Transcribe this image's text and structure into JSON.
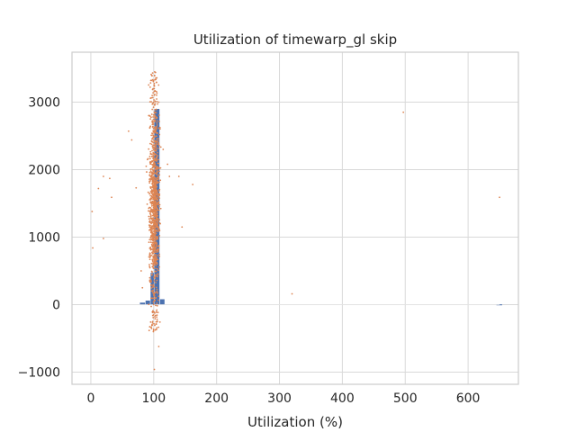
{
  "chart_data": {
    "type": "bar",
    "overlay_type": "scatter",
    "title": "Utilization of timewarp_gl skip",
    "xlabel": "Utilization (%)",
    "ylabel": "",
    "xlim": [
      -30,
      680
    ],
    "ylim": [
      -1180,
      3740
    ],
    "xticks": [
      0,
      100,
      200,
      300,
      400,
      500,
      600
    ],
    "yticks": [
      -1000,
      0,
      1000,
      2000,
      3000
    ],
    "grid": true,
    "legend": "none",
    "colors": {
      "bars": "#4c72b0",
      "points": "#dd8452",
      "grid": "#d9d9d9",
      "axes": "#cccccc"
    },
    "series": [
      {
        "kind": "histogram",
        "bins": [
          {
            "x0": 78,
            "x1": 87,
            "value": 30
          },
          {
            "x0": 87,
            "x1": 95,
            "value": 60
          },
          {
            "x0": 95,
            "x1": 101,
            "value": 470
          },
          {
            "x0": 101,
            "x1": 110,
            "value": 2900
          },
          {
            "x0": 110,
            "x1": 118,
            "value": 80
          },
          {
            "x0": 645,
            "x1": 655,
            "value": 4
          }
        ]
      },
      {
        "kind": "scatter",
        "outliers": [
          [
            2,
            1380
          ],
          [
            3,
            840
          ],
          [
            12,
            1720
          ],
          [
            20,
            1900
          ],
          [
            20,
            980
          ],
          [
            30,
            1870
          ],
          [
            33,
            1590
          ],
          [
            60,
            2570
          ],
          [
            65,
            2440
          ],
          [
            72,
            1730
          ],
          [
            80,
            500
          ],
          [
            82,
            250
          ],
          [
            88,
            2050
          ],
          [
            90,
            2150
          ],
          [
            92,
            2800
          ],
          [
            95,
            1900
          ],
          [
            108,
            3000
          ],
          [
            115,
            2300
          ],
          [
            122,
            2080
          ],
          [
            125,
            1900
          ],
          [
            140,
            1900
          ],
          [
            145,
            1150
          ],
          [
            162,
            1780
          ],
          [
            108,
            -620
          ],
          [
            101,
            -960
          ],
          [
            320,
            160
          ],
          [
            497,
            2850
          ],
          [
            650,
            1590
          ]
        ],
        "cluster": {
          "x_center": 101,
          "x_spread": 7,
          "y_min": -400,
          "y_max": 3450,
          "y_mode": 1500,
          "point_count": 1100
        }
      }
    ]
  }
}
